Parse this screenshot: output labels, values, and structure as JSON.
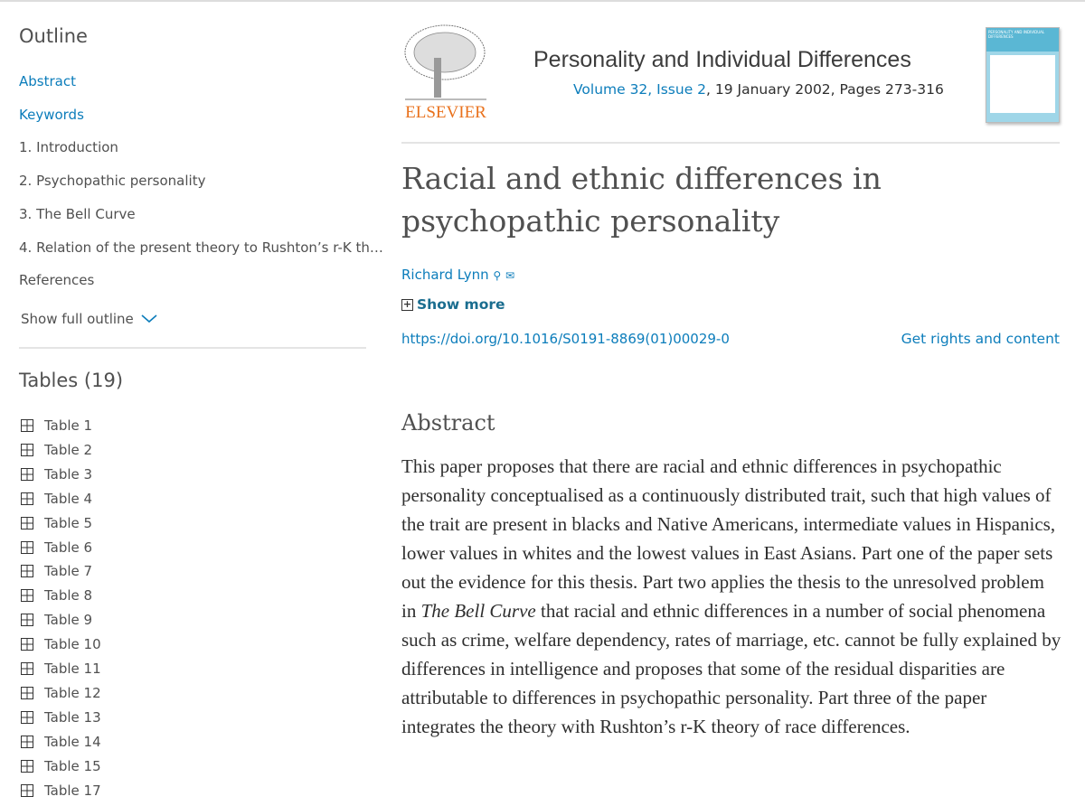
{
  "sidebar": {
    "outline_title": "Outline",
    "outline_items": [
      {
        "label": "Abstract",
        "link": true
      },
      {
        "label": "Keywords",
        "link": true
      },
      {
        "label": "1. Introduction",
        "link": false
      },
      {
        "label": "2. Psychopathic personality",
        "link": false
      },
      {
        "label": "3. The Bell Curve",
        "link": false
      },
      {
        "label": "4. Relation of the present theory to Rushton’s r-K th…",
        "link": false
      },
      {
        "label": "References",
        "link": false
      }
    ],
    "show_full_outline": "Show full outline",
    "tables_title": "Tables (19)",
    "tables": [
      "Table 1",
      "Table 2",
      "Table 3",
      "Table 4",
      "Table 5",
      "Table 6",
      "Table 7",
      "Table 8",
      "Table 9",
      "Table 10",
      "Table 11",
      "Table 12",
      "Table 13",
      "Table 14",
      "Table 15",
      "Table 17"
    ]
  },
  "header": {
    "publisher": "ELSEVIER",
    "journal": "Personality and Individual Differences",
    "volume_issue": "Volume 32, Issue 2",
    "date_pages": ", 19 January 2002, Pages 273-316",
    "cover_title": "PERSONALITY AND INDIVIDUAL DIFFERENCES"
  },
  "article": {
    "title": "Racial and ethnic differences in psychopathic personality",
    "author": "Richard Lynn",
    "show_more": "Show more",
    "doi": "https://doi.org/10.1016/S0191-8869(01)00029-0",
    "rights": "Get rights and content",
    "abstract_heading": "Abstract",
    "abstract_part1": "This paper proposes that there are racial and ethnic differences in psychopathic personality conceptualised as a continuously distributed trait, such that high values of the trait are present in blacks and Native Americans, intermediate values in Hispanics, lower values in whites and the lowest values in East Asians. Part one of the paper sets out the evidence for this thesis. Part two applies the thesis to the unresolved problem in ",
    "abstract_italic": "The Bell Curve",
    "abstract_part2": " that racial and ethnic differences in a number of social phenomena such as crime, welfare dependency, rates of marriage, etc. cannot be fully explained by differences in intelligence and proposes that some of the residual disparities are attributable to differences in psychopathic personality. Part three of the paper integrates the theory with Rushton’s r-K theory of race differences."
  },
  "colors": {
    "link": "#0c7dbb",
    "publisher_orange": "#e9711c",
    "cover_blue": "#9fd6e8"
  }
}
